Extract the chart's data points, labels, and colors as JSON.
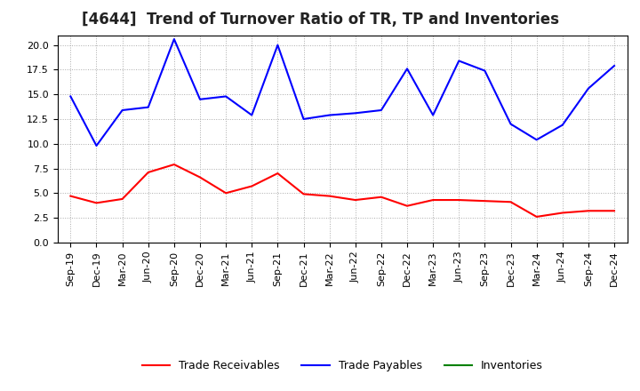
{
  "title": "[4644]  Trend of Turnover Ratio of TR, TP and Inventories",
  "x_labels": [
    "Sep-19",
    "Dec-19",
    "Mar-20",
    "Jun-20",
    "Sep-20",
    "Dec-20",
    "Mar-21",
    "Jun-21",
    "Sep-21",
    "Dec-21",
    "Mar-22",
    "Jun-22",
    "Sep-22",
    "Dec-22",
    "Mar-23",
    "Jun-23",
    "Sep-23",
    "Dec-23",
    "Mar-24",
    "Jun-24",
    "Sep-24",
    "Dec-24"
  ],
  "trade_receivables": [
    4.7,
    4.0,
    4.4,
    7.1,
    7.9,
    6.6,
    5.0,
    5.7,
    7.0,
    4.9,
    4.7,
    4.3,
    4.6,
    3.7,
    4.3,
    4.3,
    4.2,
    4.1,
    2.6,
    3.0,
    3.2,
    3.2
  ],
  "trade_payables": [
    14.8,
    9.8,
    13.4,
    13.7,
    20.6,
    14.5,
    14.8,
    12.9,
    20.0,
    12.5,
    12.9,
    13.1,
    13.4,
    17.6,
    12.9,
    18.4,
    17.4,
    12.0,
    10.4,
    11.9,
    15.6,
    17.9
  ],
  "inventories": [
    null,
    null,
    null,
    null,
    null,
    null,
    null,
    null,
    null,
    null,
    null,
    null,
    null,
    null,
    null,
    null,
    null,
    null,
    null,
    null,
    null,
    null
  ],
  "tr_color": "#ff0000",
  "tp_color": "#0000ff",
  "inv_color": "#008000",
  "ylim": [
    0.0,
    21.0
  ],
  "yticks": [
    0.0,
    2.5,
    5.0,
    7.5,
    10.0,
    12.5,
    15.0,
    17.5,
    20.0
  ],
  "background_color": "#ffffff",
  "plot_bg_color": "#ffffff",
  "grid_color": "#aaaaaa",
  "title_fontsize": 12,
  "legend_fontsize": 9,
  "tick_fontsize": 8
}
